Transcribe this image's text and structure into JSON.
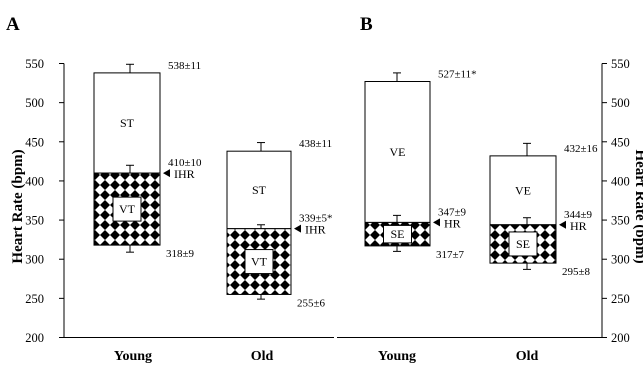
{
  "chart_data": [
    {
      "panel": "A",
      "type": "floating-bar",
      "ylabel": "Heart Rate (bpm)",
      "ylim": [
        200,
        550
      ],
      "yticks": [
        200,
        250,
        300,
        350,
        400,
        450,
        500,
        550
      ],
      "categories": [
        "Young",
        "Old"
      ],
      "bars": [
        {
          "category": "Young",
          "top": 538,
          "top_err": 11,
          "top_label": "538±11",
          "mid": 410,
          "mid_err": 10,
          "mid_label": "410±10",
          "bottom": 318,
          "bottom_err": 9,
          "bottom_label": "318±9",
          "upper_label": "ST",
          "lower_label": "VT",
          "marker_label": "IHR"
        },
        {
          "category": "Old",
          "top": 438,
          "top_err": 11,
          "top_label": "438±11",
          "mid": 339,
          "mid_err": 5,
          "mid_label": "339±5*",
          "bottom": 255,
          "bottom_err": 6,
          "bottom_label": "255±6",
          "upper_label": "ST",
          "lower_label": "VT",
          "marker_label": "IHR"
        }
      ]
    },
    {
      "panel": "B",
      "type": "floating-bar",
      "ylabel": "Heart Rate (bpm)",
      "ylim": [
        200,
        550
      ],
      "yticks": [
        200,
        250,
        300,
        350,
        400,
        450,
        500,
        550
      ],
      "categories": [
        "Young",
        "Old"
      ],
      "bars": [
        {
          "category": "Young",
          "top": 527,
          "top_err": 11,
          "top_label": "527±11*",
          "mid": 347,
          "mid_err": 9,
          "mid_label": "347±9",
          "bottom": 317,
          "bottom_err": 7,
          "bottom_label": "317±7",
          "upper_label": "VE",
          "lower_label": "SE",
          "marker_label": "HR"
        },
        {
          "category": "Old",
          "top": 432,
          "top_err": 16,
          "top_label": "432±16",
          "mid": 344,
          "mid_err": 9,
          "mid_label": "344±9",
          "bottom": 295,
          "bottom_err": 8,
          "bottom_label": "295±8",
          "upper_label": "VE",
          "lower_label": "SE",
          "marker_label": "HR"
        }
      ]
    }
  ]
}
